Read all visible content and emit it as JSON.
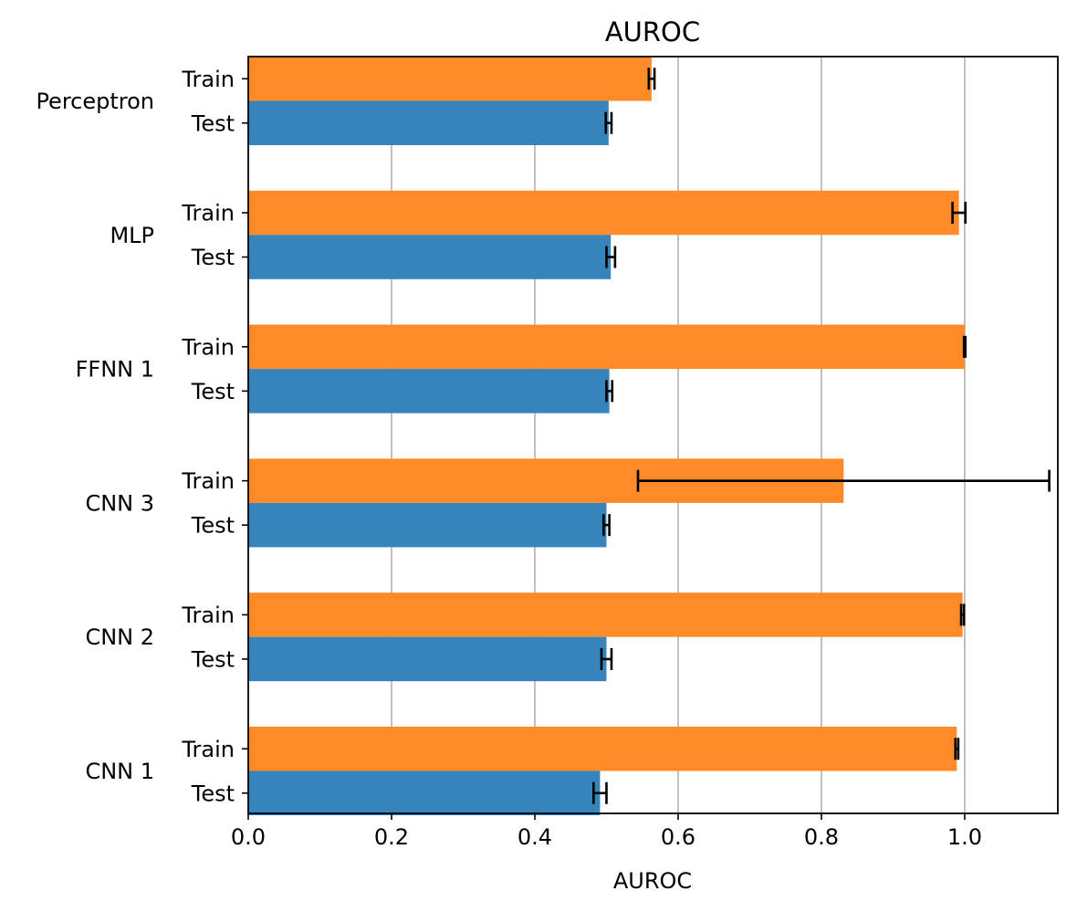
{
  "chart_data": {
    "type": "bar",
    "orientation": "horizontal",
    "title": "AUROC",
    "xlabel": "AUROC",
    "xlim": [
      0.0,
      1.13
    ],
    "xticks": [
      "0.0",
      "0.2",
      "0.4",
      "0.6",
      "0.8",
      "1.0"
    ],
    "xtick_values": [
      0.0,
      0.2,
      0.4,
      0.6,
      0.8,
      1.0
    ],
    "grid": "x-axis vertical gridlines",
    "categories": [
      "Perceptron",
      "MLP",
      "FFNN 1",
      "CNN 3",
      "CNN 2",
      "CNN 1"
    ],
    "series": [
      {
        "name": "Train",
        "color": "#ff8b28",
        "values": [
          0.563,
          0.992,
          1.0,
          0.831,
          0.997,
          0.989
        ],
        "errors": [
          0.004,
          0.009,
          0.001,
          0.287,
          0.002,
          0.002
        ]
      },
      {
        "name": "Test",
        "color": "#3584bc",
        "values": [
          0.503,
          0.506,
          0.504,
          0.5,
          0.5,
          0.491
        ],
        "errors": [
          0.004,
          0.006,
          0.004,
          0.004,
          0.007,
          0.009
        ]
      }
    ]
  }
}
